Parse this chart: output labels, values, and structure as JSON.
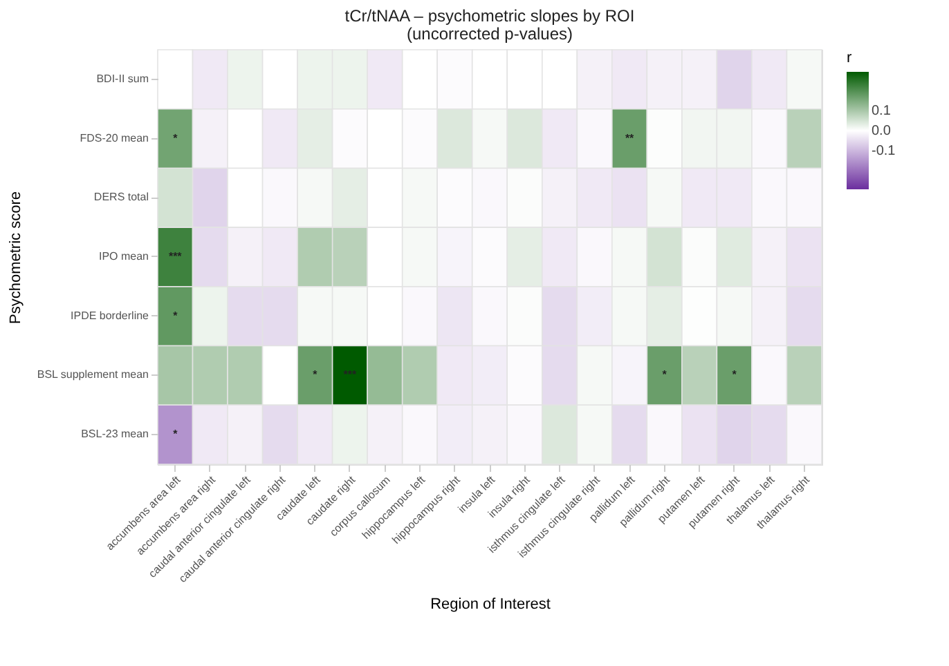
{
  "chart_data": {
    "type": "heatmap",
    "title": "tCr/tNAA – psychometric slopes by ROI",
    "subtitle": "(uncorrected p-values)",
    "xlabel": "Region of Interest",
    "ylabel": "Psychometric score",
    "legend_title": "r",
    "categories": [
      "accumbens area left",
      "accumbens area right",
      "caudal anterior cingulate left",
      "caudal anterior cingulate right",
      "caudate left",
      "caudate right",
      "corpus callosum",
      "hippocampus left",
      "hippocampus right",
      "insula left",
      "insula right",
      "isthmus cingulate left",
      "isthmus cingulate right",
      "pallidum left",
      "pallidum right",
      "putamen left",
      "putamen right",
      "thalamus left",
      "thalamus right"
    ],
    "y_categories": [
      "BDI-II sum",
      "FDS-20 mean",
      "DERS total",
      "IPO mean",
      "IPDE borderline",
      "BSL supplement mean",
      "BSL-23 mean"
    ],
    "cells": [
      [
        0.0,
        -0.03,
        0.02,
        0.0,
        0.02,
        0.02,
        -0.03,
        0.0,
        -0.005,
        0.0,
        0.0,
        0.0,
        -0.02,
        -0.03,
        -0.02,
        -0.02,
        -0.06,
        -0.03,
        0.01
      ],
      [
        0.16,
        -0.02,
        0.0,
        -0.03,
        0.03,
        -0.005,
        0.0,
        -0.005,
        0.04,
        0.01,
        0.04,
        -0.03,
        -0.01,
        0.17,
        0.003,
        0.015,
        0.015,
        -0.01,
        0.08
      ],
      [
        0.05,
        -0.06,
        0.0,
        -0.01,
        0.01,
        0.03,
        0.0,
        0.01,
        -0.005,
        -0.01,
        0.005,
        -0.02,
        -0.03,
        -0.04,
        0.01,
        -0.03,
        -0.03,
        -0.01,
        -0.01
      ],
      [
        0.22,
        -0.05,
        -0.02,
        -0.03,
        0.09,
        0.08,
        0.0,
        0.01,
        -0.015,
        -0.005,
        0.03,
        -0.03,
        -0.01,
        0.01,
        0.05,
        0.005,
        0.035,
        -0.02,
        -0.04
      ],
      [
        0.18,
        0.02,
        -0.05,
        -0.05,
        0.01,
        0.01,
        0.0,
        -0.01,
        -0.035,
        -0.01,
        0.005,
        -0.05,
        -0.025,
        0.01,
        0.03,
        0.002,
        0.01,
        -0.02,
        -0.05
      ],
      [
        0.1,
        0.09,
        0.09,
        0.0,
        0.17,
        0.29,
        0.12,
        0.09,
        -0.03,
        -0.025,
        -0.005,
        -0.05,
        0.01,
        -0.015,
        0.17,
        0.08,
        0.17,
        -0.01,
        0.08
      ],
      [
        -0.15,
        -0.03,
        -0.02,
        -0.05,
        -0.03,
        0.02,
        -0.02,
        -0.01,
        -0.025,
        -0.02,
        -0.01,
        0.04,
        0.01,
        -0.05,
        -0.01,
        -0.04,
        -0.06,
        -0.05,
        -0.01
      ]
    ],
    "cell_labels": [
      [
        null,
        null,
        null,
        null,
        null,
        null,
        null,
        null,
        null,
        null,
        null,
        null,
        null,
        null,
        null,
        null,
        null,
        null,
        null
      ],
      [
        "*",
        null,
        null,
        null,
        null,
        null,
        null,
        null,
        null,
        null,
        null,
        null,
        null,
        "**",
        null,
        null,
        null,
        null,
        null
      ],
      [
        null,
        null,
        null,
        null,
        null,
        null,
        null,
        null,
        null,
        null,
        null,
        null,
        null,
        null,
        null,
        null,
        null,
        null,
        null
      ],
      [
        "***",
        null,
        null,
        null,
        null,
        null,
        null,
        null,
        null,
        null,
        null,
        null,
        null,
        null,
        null,
        null,
        null,
        null,
        null
      ],
      [
        "*",
        null,
        null,
        null,
        null,
        null,
        null,
        null,
        null,
        null,
        null,
        null,
        null,
        null,
        null,
        null,
        null,
        null,
        null
      ],
      [
        null,
        null,
        null,
        null,
        "*",
        "***",
        null,
        null,
        null,
        null,
        null,
        null,
        null,
        null,
        "*",
        null,
        "*",
        null,
        null
      ],
      [
        "*",
        null,
        null,
        null,
        null,
        null,
        null,
        null,
        null,
        null,
        null,
        null,
        null,
        null,
        null,
        null,
        null,
        null,
        null
      ]
    ],
    "colors": [
      "#6b2e9e",
      "#ffffff",
      "#005a00"
    ],
    "clim": [
      -0.29,
      0.29
    ],
    "cticks": [
      -0.1,
      {
        "value": 0,
        "label": "0.0"
      },
      0.1
    ]
  }
}
